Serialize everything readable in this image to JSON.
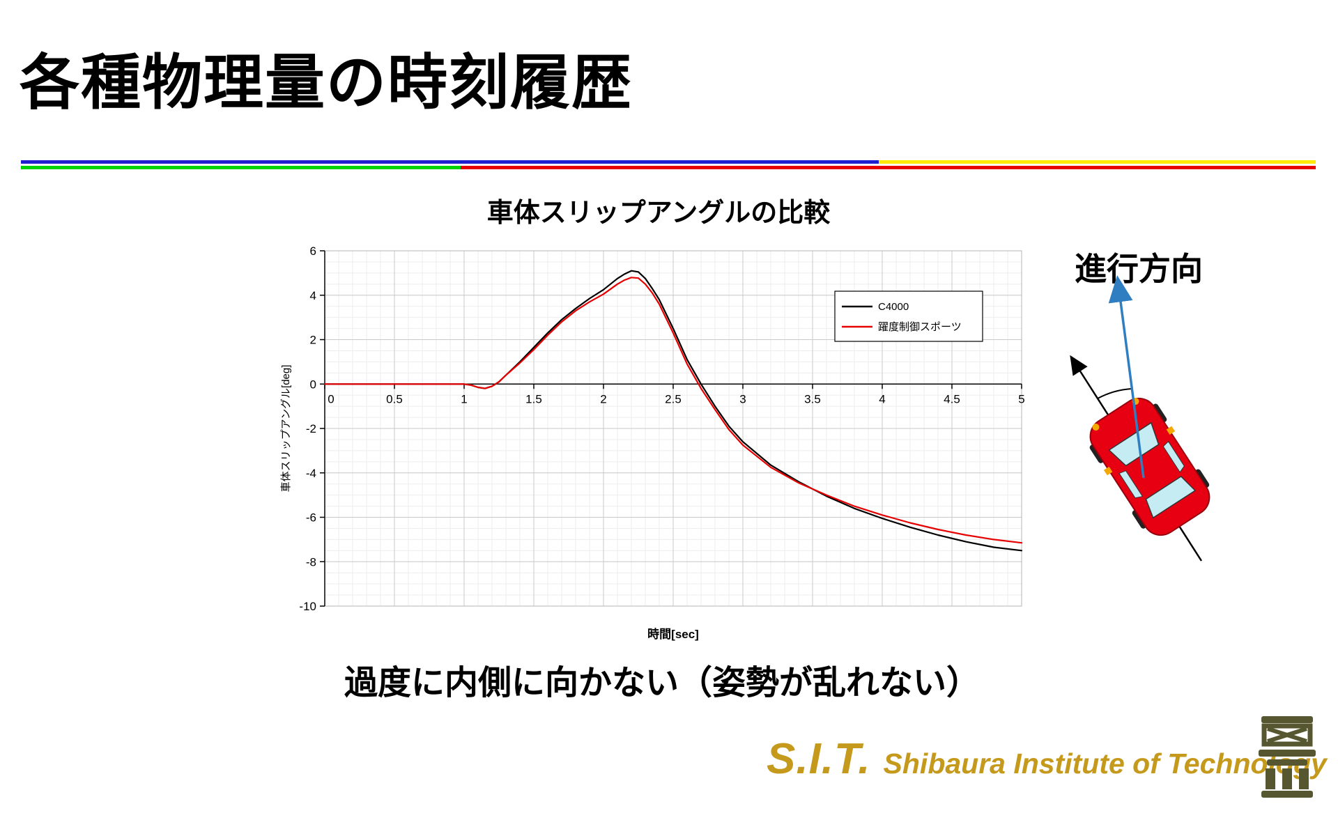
{
  "slide": {
    "title": "各種物理量の時刻履歴",
    "caption": "過度に内側に向かない（姿勢が乱れない）",
    "direction_label": "進行方向",
    "logo": {
      "abbr": "S.I.T.",
      "name": "Shibaura Institute of Technology"
    },
    "colors": {
      "accent_gold": "#c59a1c",
      "emblem_olive": "#565630",
      "rule_blue": "#1f1fd0",
      "rule_green": "#00d400",
      "rule_red": "#e80000",
      "rule_yellow": "#ffe800",
      "car_red": "#e60012",
      "car_window": "#c4ecf2",
      "arrow_blue": "#2f7ec1"
    }
  },
  "chart_data": {
    "type": "line",
    "title": "車体スリップアングルの比較",
    "xlabel": "時間[sec]",
    "ylabel": "車体スリップアングル[deg]",
    "xlim": [
      0,
      5
    ],
    "ylim": [
      -10,
      6
    ],
    "xticks": [
      0,
      0.5,
      1,
      1.5,
      2,
      2.5,
      3,
      3.5,
      4,
      4.5,
      5
    ],
    "yticks": [
      6,
      4,
      2,
      0,
      -2,
      -4,
      -6,
      -8,
      -10
    ],
    "grid": true,
    "legend_position": "upper right",
    "x": [
      0,
      0.25,
      0.5,
      0.75,
      1.0,
      1.05,
      1.1,
      1.15,
      1.2,
      1.25,
      1.3,
      1.4,
      1.5,
      1.6,
      1.7,
      1.8,
      1.9,
      2.0,
      2.1,
      2.15,
      2.2,
      2.25,
      2.3,
      2.35,
      2.4,
      2.5,
      2.6,
      2.7,
      2.8,
      2.9,
      3.0,
      3.2,
      3.4,
      3.6,
      3.8,
      4.0,
      4.2,
      4.4,
      4.6,
      4.8,
      5.0
    ],
    "series": [
      {
        "name": "C4000",
        "color": "#000000",
        "values": [
          0,
          0,
          0,
          0,
          0,
          -0.05,
          -0.15,
          -0.2,
          -0.1,
          0.1,
          0.4,
          1.0,
          1.65,
          2.3,
          2.9,
          3.4,
          3.85,
          4.25,
          4.75,
          4.95,
          5.1,
          5.05,
          4.75,
          4.3,
          3.8,
          2.5,
          1.1,
          0.0,
          -1.0,
          -1.9,
          -2.6,
          -3.65,
          -4.4,
          -5.05,
          -5.6,
          -6.05,
          -6.45,
          -6.8,
          -7.1,
          -7.35,
          -7.5
        ]
      },
      {
        "name": "躍度制御スポーツ",
        "color": "#e60000",
        "values": [
          0,
          0,
          0,
          0,
          0,
          -0.05,
          -0.15,
          -0.2,
          -0.1,
          0.1,
          0.4,
          0.95,
          1.55,
          2.2,
          2.8,
          3.3,
          3.7,
          4.05,
          4.5,
          4.68,
          4.8,
          4.77,
          4.5,
          4.1,
          3.6,
          2.3,
          0.9,
          -0.2,
          -1.15,
          -2.05,
          -2.75,
          -3.75,
          -4.45,
          -5.0,
          -5.5,
          -5.9,
          -6.25,
          -6.55,
          -6.8,
          -7.0,
          -7.15
        ]
      }
    ]
  }
}
